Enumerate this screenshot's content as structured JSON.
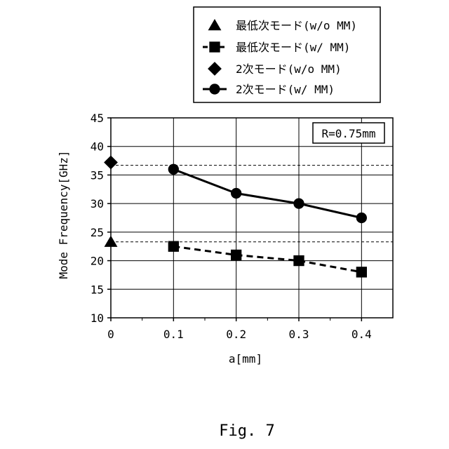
{
  "figure": {
    "caption": "Fig. 7"
  },
  "chart_data": {
    "type": "line",
    "xlabel": "a[mm]",
    "ylabel": "Mode Frequency[GHz]",
    "xlim": [
      0,
      0.45
    ],
    "ylim": [
      10,
      45
    ],
    "x_ticks": [
      0,
      0.1,
      0.2,
      0.3,
      0.4
    ],
    "x_tick_labels": [
      "0",
      "0.1",
      "0.2",
      "0.3",
      "0.4"
    ],
    "y_ticks": [
      10,
      15,
      20,
      25,
      30,
      35,
      40,
      45
    ],
    "y_tick_labels": [
      "10",
      "15",
      "20",
      "25",
      "30",
      "35",
      "40",
      "45"
    ],
    "grid": true,
    "annotation": "R=0.75mm",
    "legend_position": "top-right, outside plot",
    "series": [
      {
        "name": "最低次モード(w/o MM)",
        "marker": "triangle",
        "line": "none",
        "x": [
          0
        ],
        "y": [
          23.3
        ],
        "reference_line": 23.3
      },
      {
        "name": "最低次モード(w/ MM)",
        "marker": "square",
        "line": "dashed",
        "x": [
          0.1,
          0.2,
          0.3,
          0.4
        ],
        "y": [
          22.5,
          21.0,
          20.0,
          18.0
        ]
      },
      {
        "name": "2次モード(w/o MM)",
        "marker": "diamond",
        "line": "none",
        "x": [
          0
        ],
        "y": [
          37.2
        ],
        "reference_line": 36.7
      },
      {
        "name": "2次モード(w/ MM)",
        "marker": "circle",
        "line": "solid",
        "x": [
          0.1,
          0.2,
          0.3,
          0.4
        ],
        "y": [
          36.0,
          31.8,
          30.0,
          27.5
        ]
      }
    ]
  }
}
